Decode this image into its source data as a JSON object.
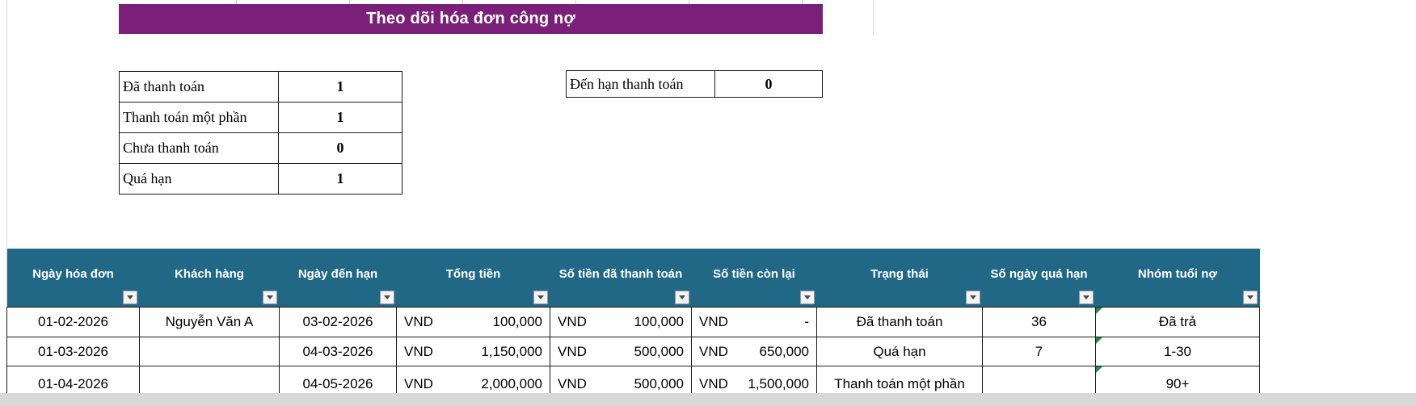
{
  "colors": {
    "banner_bg": "#7B2078",
    "table_header_bg": "#216786",
    "indicator_green": "#1E8E3E",
    "bottom_strip_gray": "#D8D8D8"
  },
  "banner": {
    "title": "Theo dõi hóa đơn công nợ"
  },
  "summary_table": {
    "rows": [
      {
        "label": "Đã thanh toán",
        "value": "1"
      },
      {
        "label": "Thanh toán một phần",
        "value": "1"
      },
      {
        "label": "Chưa thanh toán",
        "value": "0"
      },
      {
        "label": "Quá hạn",
        "value": "1"
      }
    ]
  },
  "due_table": {
    "label": "Đến hạn thanh toán",
    "value": "0"
  },
  "invoice_table": {
    "columns": [
      "Ngày hóa đơn",
      "Khách hàng",
      "Ngày đến hạn",
      "Tổng tiền",
      "Số tiền đã thanh toán",
      "Số tiền còn lại",
      "Trạng thái",
      "Số ngày quá hạn",
      "Nhóm tuổi nợ"
    ],
    "filter_icon": "chevron-down",
    "rows": [
      [
        {
          "text": "01-02-2026"
        },
        {
          "text": "Nguyễn Văn A"
        },
        {
          "text": "03-02-2026"
        },
        {
          "cur": "VND",
          "amt": "100,000"
        },
        {
          "cur": "VND",
          "amt": "100,000"
        },
        {
          "cur": "VND",
          "amt": "-"
        },
        {
          "text": "Đã thanh toán"
        },
        {
          "text": "36"
        },
        {
          "text": "Đã trả",
          "indicator": true
        }
      ],
      [
        {
          "text": "01-03-2026"
        },
        {
          "text": ""
        },
        {
          "text": "04-03-2026"
        },
        {
          "cur": "VND",
          "amt": "1,150,000"
        },
        {
          "cur": "VND",
          "amt": "500,000"
        },
        {
          "cur": "VND",
          "amt": "650,000"
        },
        {
          "text": "Quá hạn"
        },
        {
          "text": "7"
        },
        {
          "text": "1-30",
          "indicator": true
        }
      ],
      [
        {
          "text": "01-04-2026"
        },
        {
          "text": ""
        },
        {
          "text": "04-05-2026"
        },
        {
          "cur": "VND",
          "amt": "2,000,000"
        },
        {
          "cur": "VND",
          "amt": "500,000"
        },
        {
          "cur": "VND",
          "amt": "1,500,000"
        },
        {
          "text": "Thanh toán một phần"
        },
        {
          "text": ""
        },
        {
          "text": "90+",
          "indicator": true
        }
      ]
    ]
  }
}
